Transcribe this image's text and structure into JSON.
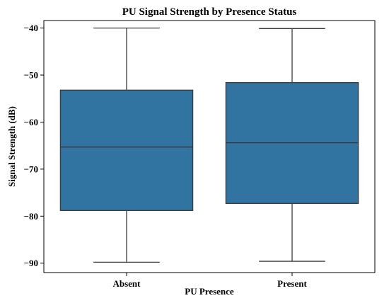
{
  "chart_data": {
    "type": "box",
    "title": "PU Signal Strength by Presence Status",
    "xlabel": "PU Presence",
    "ylabel": "Signal Strength (dB)",
    "categories": [
      "Absent",
      "Present"
    ],
    "ylim": [
      -92,
      -38.4
    ],
    "yticks": [
      -40,
      -50,
      -60,
      -70,
      -80,
      -90
    ],
    "ytick_labels": [
      "−40",
      "−50",
      "−60",
      "−70",
      "−80",
      "−90"
    ],
    "boxes": [
      {
        "category": "Absent",
        "whisker_low": -89.8,
        "q1": -78.8,
        "median": -65.3,
        "q3": -53.2,
        "whisker_high": -40.0
      },
      {
        "category": "Present",
        "whisker_low": -89.6,
        "q1": -77.3,
        "median": -64.4,
        "q3": -51.6,
        "whisker_high": -40.1
      }
    ],
    "box_color": "#3274a1",
    "edge_color": "#3a3a3a",
    "grid": false
  }
}
